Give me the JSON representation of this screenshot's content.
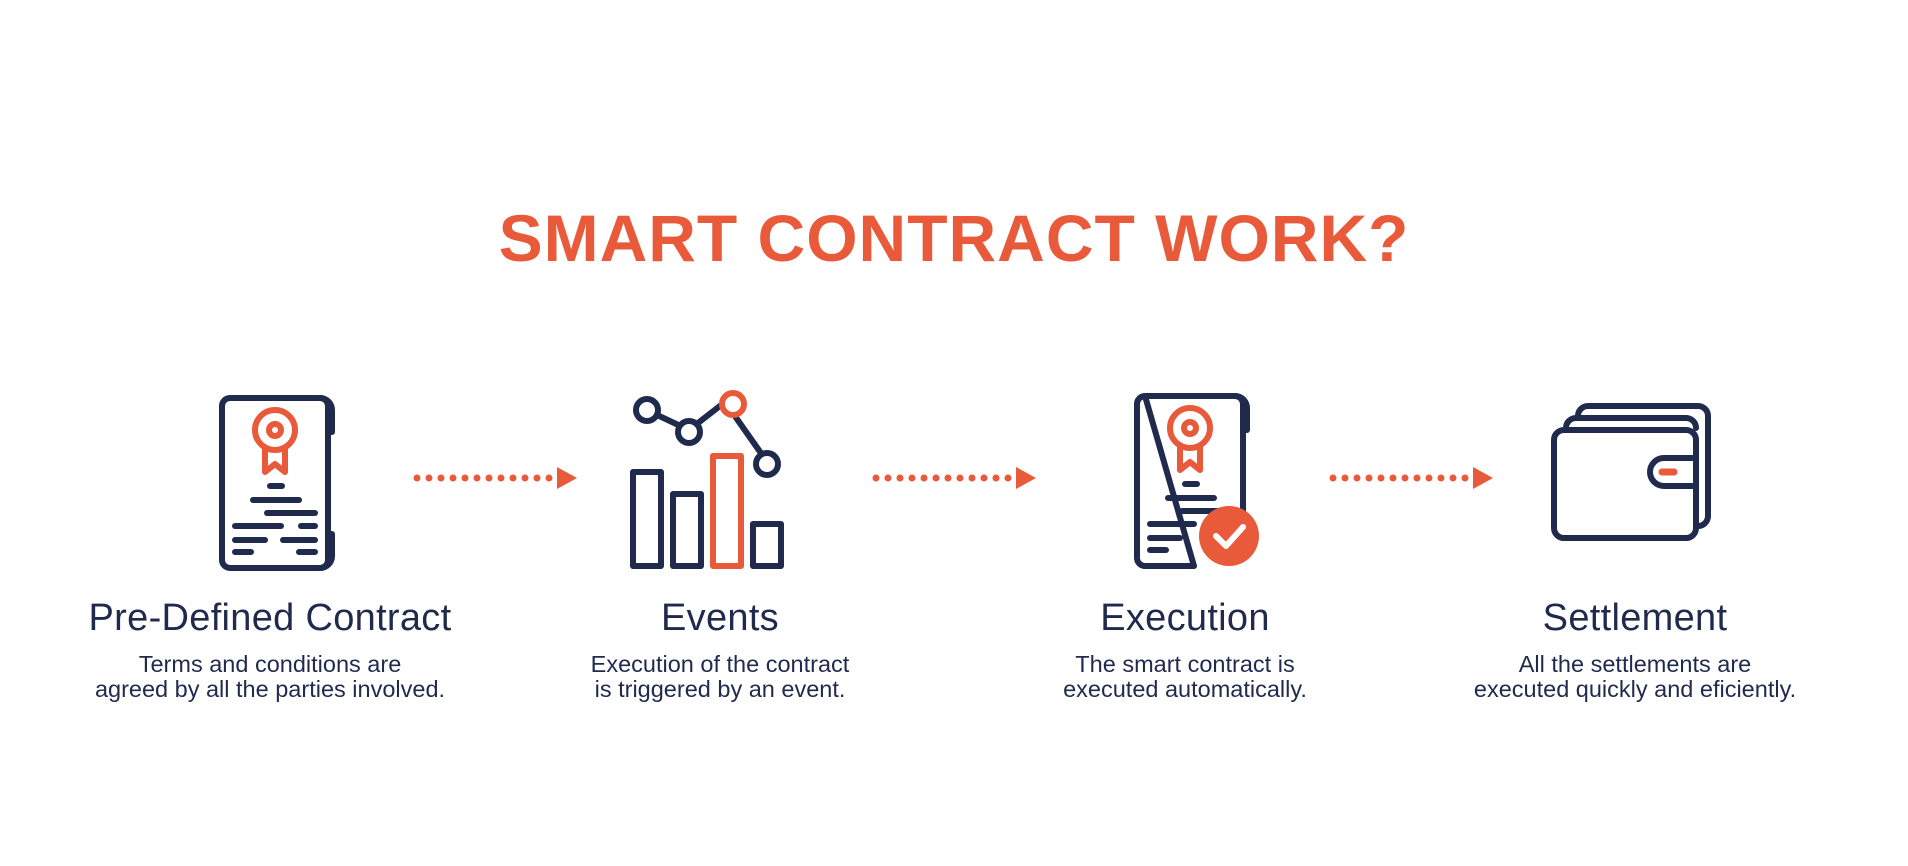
{
  "colors": {
    "accent": "#e85a3a",
    "navy": "#1f2a4d",
    "background": "#ffffff"
  },
  "title": "SMART CONTRACT WORK?",
  "steps": [
    {
      "icon": "certificate-document-icon",
      "title": "Pre-Defined Contract",
      "desc_line1": "Terms and conditions are",
      "desc_line2": "agreed by all the parties involved."
    },
    {
      "icon": "bar-line-chart-icon",
      "title": "Events",
      "desc_line1": "Execution of the contract",
      "desc_line2": "is triggered by an event."
    },
    {
      "icon": "certificate-checkmark-icon",
      "title": "Execution",
      "desc_line1": "The smart contract is",
      "desc_line2": "executed automatically."
    },
    {
      "icon": "wallet-icon",
      "title": "Settlement",
      "desc_line1": "All the settlements are",
      "desc_line2": "executed quickly and eficiently."
    }
  ],
  "arrows": [
    {
      "icon": "dotted-arrow-right-icon"
    },
    {
      "icon": "dotted-arrow-right-icon"
    },
    {
      "icon": "dotted-arrow-right-icon"
    }
  ]
}
